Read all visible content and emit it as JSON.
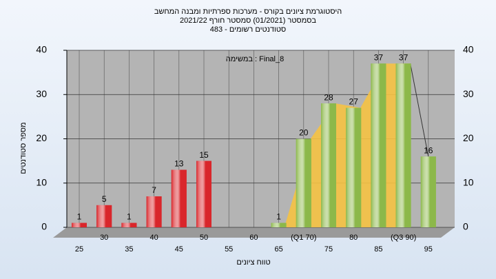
{
  "chart_data": {
    "type": "bar",
    "title": "היסטוגרמת ציונים בקורס - מערכות ספרתיות ומבנה המחשב",
    "subtitle": "בסמסטר (01/2021) סמסטר חורף 2021/22",
    "note": "סטודנטים רשומים - 483",
    "annotation": "במשימה : Final_8",
    "x_label": "טווח ציונים",
    "y_label": "מספר סטודנטים",
    "categories": [
      "25",
      "30",
      "35",
      "40",
      "45",
      "50",
      "55",
      "60",
      "65",
      "(Q1 70)",
      "75",
      "80",
      "85",
      "(Q3 90)",
      "95"
    ],
    "values": [
      1,
      5,
      1,
      7,
      13,
      15,
      null,
      null,
      1,
      20,
      28,
      27,
      37,
      37,
      16
    ],
    "colors": [
      "#d9262b",
      "#d9262b",
      "#d9262b",
      "#d9262b",
      "#d9262b",
      "#d9262b",
      "#d9262b",
      "#d9262b",
      "#8cb84a",
      "#8cb84a",
      "#8cb84a",
      "#8cb84a",
      "#8cb84a",
      "#8cb84a",
      "#8cb84a"
    ],
    "ylim": [
      0,
      40
    ],
    "yticks": [
      0,
      10,
      20,
      30,
      40
    ],
    "grid": true
  }
}
